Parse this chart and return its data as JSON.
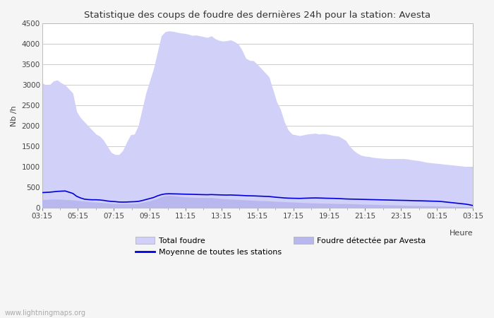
{
  "title": "Statistique des coups de foudre des dernières 24h pour la station: Avesta",
  "ylabel": "Nb /h",
  "xlabel": "Heure",
  "watermark": "www.lightningmaps.org",
  "x_labels": [
    "03:15",
    "05:15",
    "07:15",
    "09:15",
    "11:15",
    "13:15",
    "15:15",
    "17:15",
    "19:15",
    "21:15",
    "23:15",
    "01:15",
    "03:15"
  ],
  "ylim": [
    0,
    4500
  ],
  "yticks": [
    0,
    500,
    1000,
    1500,
    2000,
    2500,
    3000,
    3500,
    4000,
    4500
  ],
  "bg_color": "#f5f5f5",
  "plot_bg_color": "#ffffff",
  "grid_color": "#cccccc",
  "total_foudre_color": "#d0d0f8",
  "foudre_avesta_color": "#b8b8ee",
  "line_color": "#0000dd",
  "legend_total": "Total foudre",
  "legend_moyenne": "Moyenne de toutes les stations",
  "legend_avesta": "Foudre détectée par Avesta",
  "total_foudre": [
    3050,
    3000,
    3010,
    3100,
    3120,
    3050,
    3000,
    2900,
    2800,
    2350,
    2200,
    2100,
    2000,
    1900,
    1800,
    1750,
    1650,
    1500,
    1350,
    1300,
    1300,
    1400,
    1600,
    1780,
    1800,
    2000,
    2400,
    2800,
    3100,
    3400,
    3800,
    4200,
    4300,
    4320,
    4310,
    4290,
    4270,
    4260,
    4240,
    4210,
    4220,
    4200,
    4180,
    4160,
    4200,
    4130,
    4090,
    4070,
    4080,
    4100,
    4060,
    4000,
    3850,
    3650,
    3600,
    3590,
    3500,
    3400,
    3300,
    3200,
    2900,
    2590,
    2400,
    2100,
    1900,
    1800,
    1780,
    1760,
    1780,
    1800,
    1810,
    1820,
    1800,
    1810,
    1800,
    1780,
    1760,
    1750,
    1700,
    1640,
    1500,
    1400,
    1330,
    1280,
    1260,
    1250,
    1230,
    1220,
    1210,
    1205,
    1200,
    1200,
    1200,
    1200,
    1200,
    1190,
    1175,
    1160,
    1150,
    1130,
    1110,
    1100,
    1090,
    1080,
    1070,
    1060,
    1050,
    1040,
    1030,
    1020,
    1010,
    1005,
    1000
  ],
  "foudre_avesta": [
    200,
    200,
    205,
    210,
    210,
    205,
    200,
    195,
    190,
    180,
    170,
    160,
    150,
    140,
    135,
    130,
    125,
    115,
    105,
    100,
    95,
    95,
    98,
    100,
    100,
    110,
    130,
    150,
    170,
    200,
    230,
    270,
    295,
    300,
    295,
    285,
    275,
    265,
    260,
    255,
    252,
    250,
    248,
    245,
    250,
    240,
    230,
    220,
    215,
    210,
    205,
    200,
    195,
    190,
    185,
    180,
    175,
    172,
    170,
    165,
    160,
    155,
    150,
    145,
    142,
    140,
    135,
    130,
    125,
    120,
    118,
    115,
    112,
    110,
    108,
    105,
    103,
    100,
    100,
    100,
    98,
    95,
    92,
    88,
    85,
    82,
    80,
    78,
    75,
    72,
    70,
    68,
    65,
    63,
    60,
    58,
    56,
    54,
    52,
    50,
    48,
    46,
    44,
    42,
    40,
    38,
    35,
    33,
    30,
    27,
    25,
    22,
    20
  ],
  "moyenne": [
    370,
    375,
    380,
    390,
    400,
    405,
    410,
    380,
    350,
    280,
    240,
    210,
    200,
    195,
    195,
    190,
    180,
    165,
    155,
    150,
    140,
    138,
    140,
    145,
    148,
    155,
    175,
    200,
    225,
    250,
    290,
    320,
    338,
    342,
    340,
    338,
    335,
    332,
    330,
    328,
    325,
    322,
    320,
    318,
    322,
    318,
    315,
    312,
    310,
    312,
    308,
    305,
    300,
    295,
    292,
    290,
    286,
    282,
    278,
    275,
    265,
    255,
    248,
    240,
    235,
    232,
    230,
    228,
    232,
    235,
    238,
    240,
    238,
    235,
    232,
    230,
    228,
    225,
    220,
    215,
    212,
    210,
    208,
    205,
    203,
    200,
    198,
    196,
    193,
    191,
    189,
    186,
    184,
    182,
    180,
    178,
    175,
    172,
    170,
    168,
    165,
    162,
    160,
    157,
    150,
    140,
    130,
    120,
    110,
    100,
    90,
    75,
    55
  ]
}
